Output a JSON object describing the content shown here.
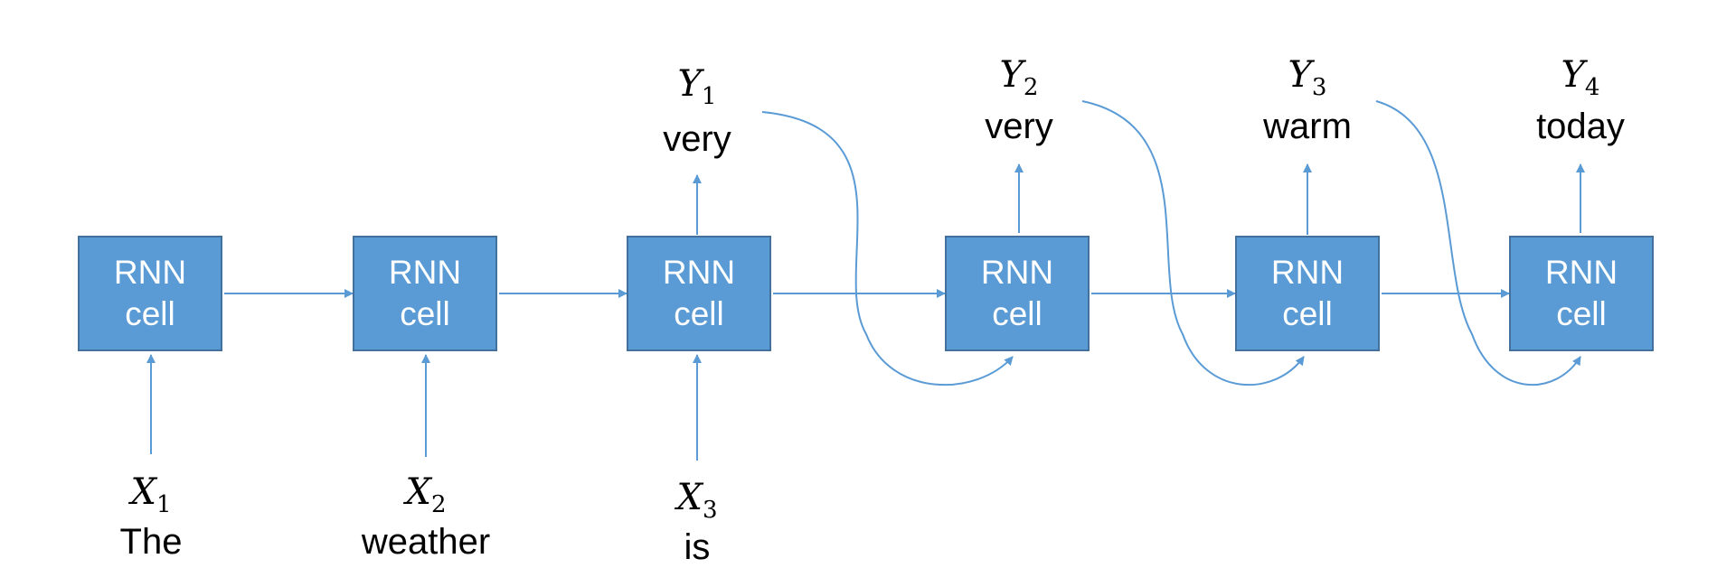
{
  "colors": {
    "cell_fill": "#5b9bd5",
    "cell_border": "#41719c",
    "arrow": "#5b9bd5",
    "text": "#000000"
  },
  "cells": [
    {
      "line1": "RNN",
      "line2": "cell"
    },
    {
      "line1": "RNN",
      "line2": "cell"
    },
    {
      "line1": "RNN",
      "line2": "cell"
    },
    {
      "line1": "RNN",
      "line2": "cell"
    },
    {
      "line1": "RNN",
      "line2": "cell"
    },
    {
      "line1": "RNN",
      "line2": "cell"
    }
  ],
  "inputs": [
    {
      "symbol": "X",
      "index": "1",
      "word": "The"
    },
    {
      "symbol": "X",
      "index": "2",
      "word": "weather"
    },
    {
      "symbol": "X",
      "index": "3",
      "word": "is"
    }
  ],
  "outputs": [
    {
      "symbol": "Y",
      "index": "1",
      "word": "very"
    },
    {
      "symbol": "Y",
      "index": "2",
      "word": "very"
    },
    {
      "symbol": "Y",
      "index": "3",
      "word": "warm"
    },
    {
      "symbol": "Y",
      "index": "4",
      "word": "today"
    }
  ]
}
